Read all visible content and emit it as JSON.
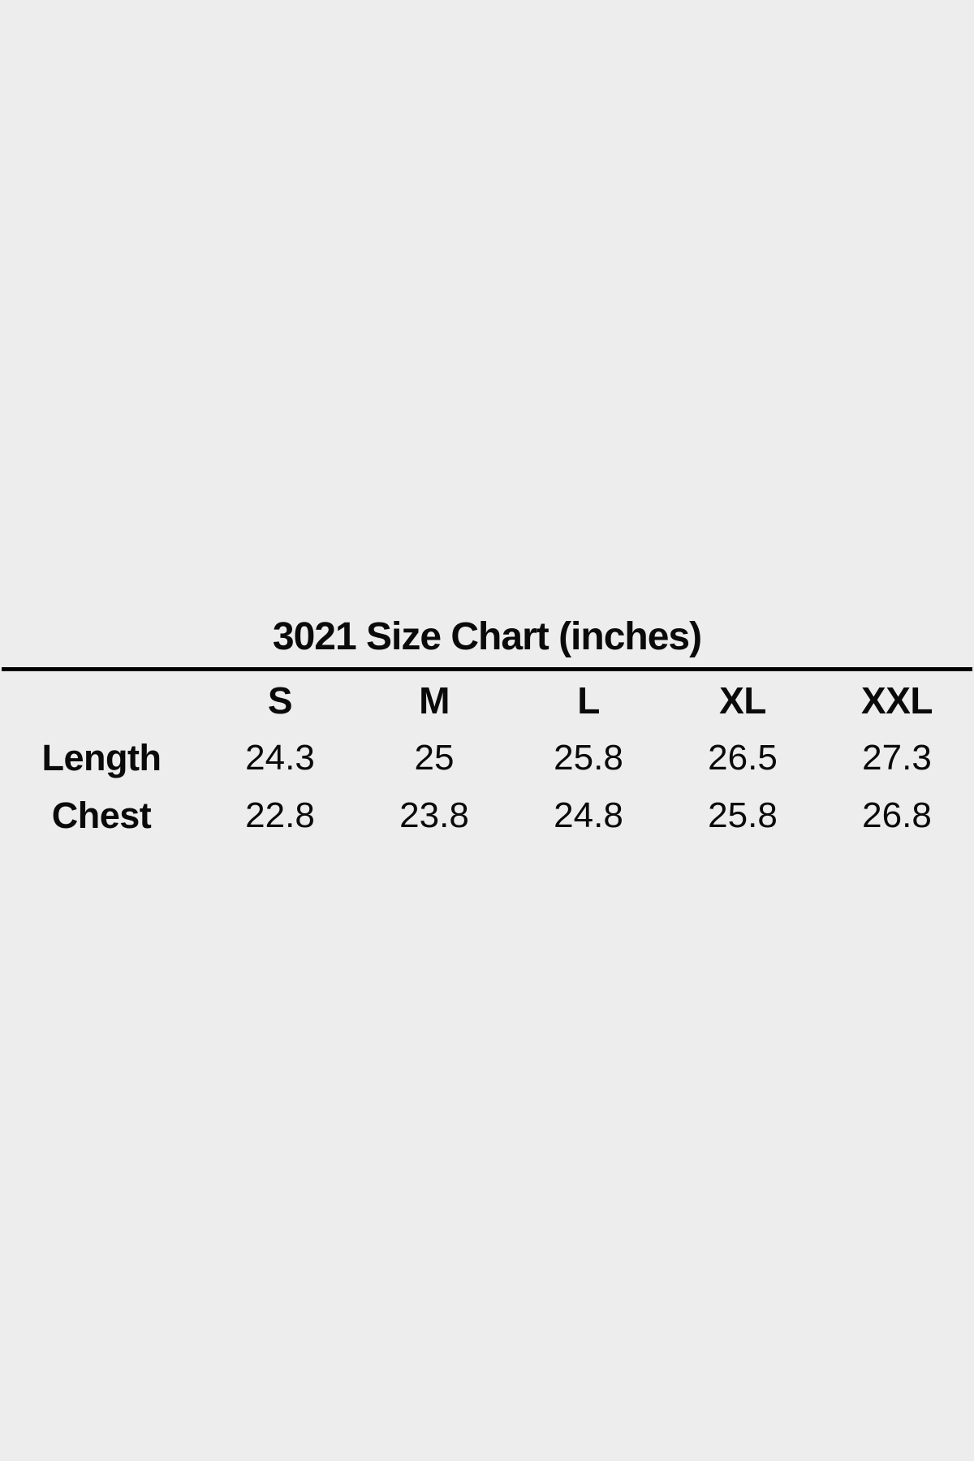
{
  "page": {
    "background_color": "#ededed",
    "text_color": "#0a0a0a",
    "rule_color": "#000000"
  },
  "chart_data": {
    "type": "table",
    "title": "3021 Size Chart (inches)",
    "columns": [
      "S",
      "M",
      "L",
      "XL",
      "XXL"
    ],
    "rows": [
      {
        "label": "Length",
        "values": [
          "24.3",
          "25",
          "25.8",
          "26.5",
          "27.3"
        ]
      },
      {
        "label": "Chest",
        "values": [
          "22.8",
          "23.8",
          "24.8",
          "25.8",
          "26.8"
        ]
      }
    ]
  }
}
